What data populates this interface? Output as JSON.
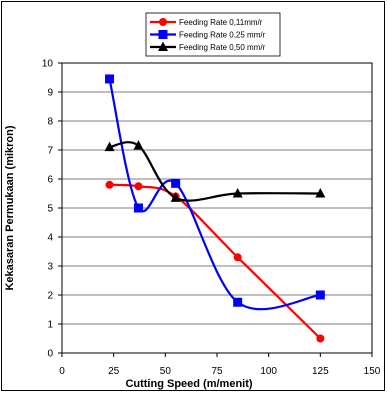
{
  "chart_data": {
    "type": "line",
    "title": "",
    "xlabel": "Cutting Speed (m/menit)",
    "ylabel": "Kekasaran Permukaan (mikron)",
    "xlim": [
      0,
      150
    ],
    "ylim": [
      0,
      10
    ],
    "x_ticks": [
      "0",
      "25",
      "50",
      "75",
      "100",
      "125",
      "150"
    ],
    "y_ticks": [
      "0",
      "1",
      "2",
      "3",
      "4",
      "5",
      "6",
      "7",
      "8",
      "9",
      "10"
    ],
    "grid": "horizontal",
    "legend_position": "top",
    "smooth": true,
    "series": [
      {
        "name": "Feeding Rate 0,11mm/r",
        "color": "#ff0000",
        "marker": "circle",
        "x": [
          23,
          37,
          55,
          85,
          125
        ],
        "y": [
          5.8,
          5.75,
          5.4,
          3.3,
          0.5
        ]
      },
      {
        "name": "Feeding Rate 0,25 mm/r",
        "color": "#0000ff",
        "marker": "square",
        "x": [
          23,
          37,
          55,
          85,
          125
        ],
        "y": [
          9.45,
          5.0,
          5.85,
          1.75,
          2.0
        ]
      },
      {
        "name": "Feeding Rate 0,50 mm/r",
        "color": "#000000",
        "marker": "triangle",
        "x": [
          23,
          37,
          55,
          85,
          125
        ],
        "y": [
          7.1,
          7.15,
          5.35,
          5.5,
          5.5
        ]
      }
    ]
  }
}
